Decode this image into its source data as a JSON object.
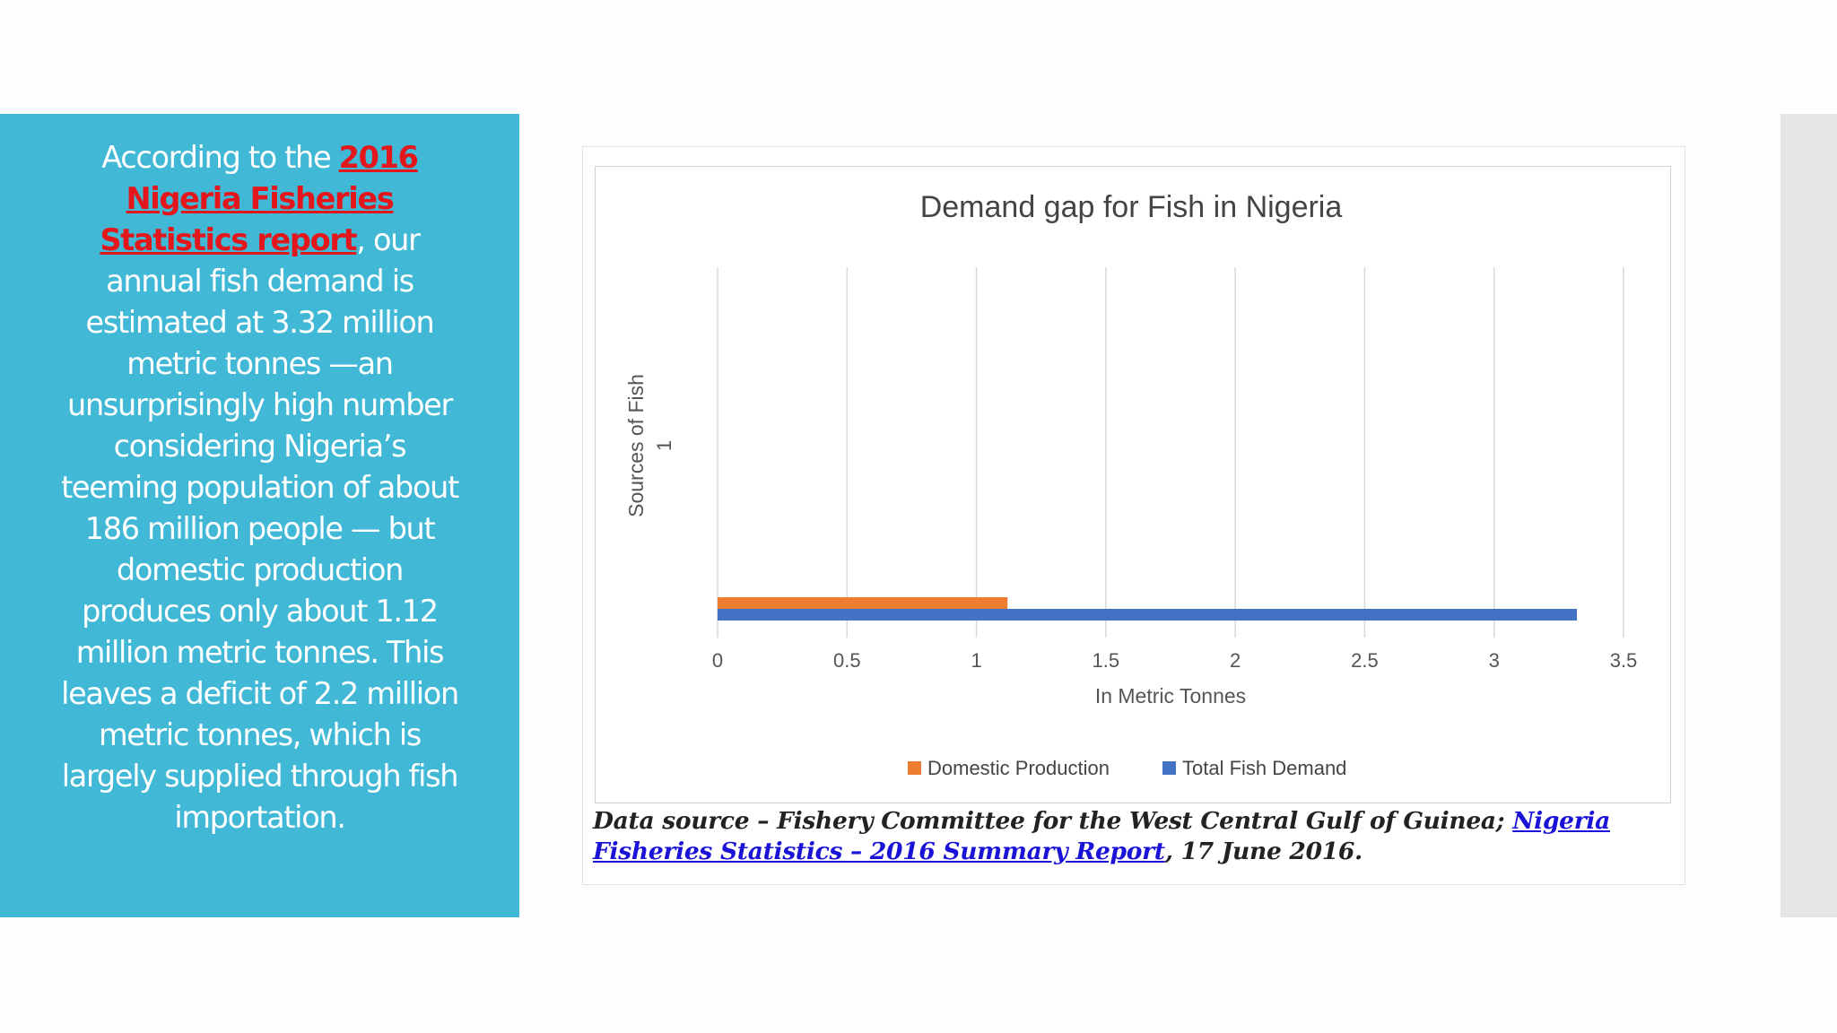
{
  "left_panel": {
    "intro": "According to the ",
    "link_text": "2016 Nigeria Fisheries Statistics report",
    "body": ", our annual fish demand is estimated at 3.32 million metric tonnes —an unsurprisingly high number considering Nigeria’s teeming population of about 186 million people — but domestic production produces only about 1.12 million metric tonnes. This leaves a deficit of 2.2 million metric tonnes, which is largely supplied through fish importation."
  },
  "caption": {
    "prefix": "Data source – Fishery Committee for the West Central Gulf of Guinea; ",
    "link_text": "Nigeria Fisheries Statistics – 2016 Summary Report",
    "suffix": ", 17 June 2016."
  },
  "chart_data": {
    "type": "bar",
    "orientation": "horizontal",
    "title": "Demand gap for Fish in Nigeria",
    "xlabel": "In Metric Tonnes",
    "ylabel": "Sources of Fish",
    "categories": [
      "1"
    ],
    "series": [
      {
        "name": "Domestic Production",
        "values": [
          1.12
        ],
        "color": "#ed7d31"
      },
      {
        "name": "Total Fish Demand",
        "values": [
          3.32
        ],
        "color": "#4472c4"
      }
    ],
    "xlim": [
      0,
      3.5
    ],
    "xticks": [
      "0",
      "0.5",
      "1",
      "1.5",
      "2",
      "2.5",
      "3",
      "3.5"
    ],
    "grid": "vertical",
    "legend_position": "bottom"
  }
}
